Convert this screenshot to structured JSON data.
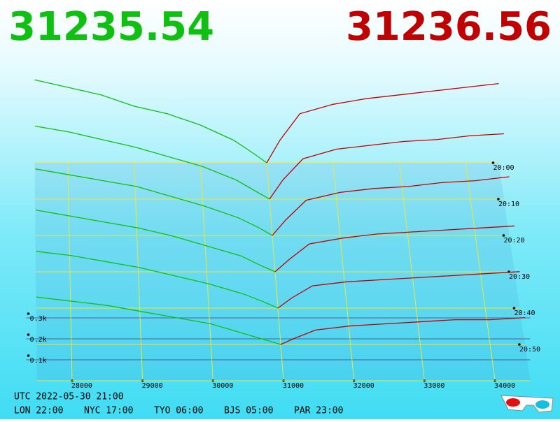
{
  "chart_data": {
    "type": "depth3d",
    "bid": "31235.54",
    "ask": "31236.56",
    "bid_color": "#10c010",
    "ask_color": "#c00000",
    "xlim": [
      27500,
      34500
    ],
    "xticks": [
      28000,
      29000,
      30000,
      31000,
      32000,
      33000,
      34000
    ],
    "tlim": [
      0,
      60
    ],
    "tticks": [
      {
        "value": 0,
        "label": "20:00"
      },
      {
        "value": 10,
        "label": "20:10"
      },
      {
        "value": 20,
        "label": "20:20"
      },
      {
        "value": 30,
        "label": "20:30"
      },
      {
        "value": 40,
        "label": "20:40"
      },
      {
        "value": 50,
        "label": "20:50"
      }
    ],
    "zticks": [
      {
        "value": 0.1,
        "label": "0.1k"
      },
      {
        "value": 0.2,
        "label": "0.2k"
      },
      {
        "value": 0.3,
        "label": "0.3k"
      }
    ],
    "snapshots": [
      {
        "t": 0,
        "bids": {
          "prices": [
            31000,
            30800,
            30500,
            30000,
            29500,
            29000,
            28500,
            28000,
            27500
          ],
          "depths": [
            0,
            0.05,
            0.12,
            0.2,
            0.26,
            0.3,
            0.36,
            0.4,
            0.44
          ]
        },
        "asks": {
          "prices": [
            31000,
            31200,
            31500,
            32000,
            32500,
            33000,
            33500,
            34000,
            34500
          ],
          "depths": [
            0,
            0.12,
            0.26,
            0.31,
            0.34,
            0.36,
            0.38,
            0.4,
            0.42
          ]
        }
      },
      {
        "t": 10,
        "bids": {
          "prices": [
            31000,
            30800,
            30500,
            30000,
            29500,
            29000,
            28500,
            28000,
            27500
          ],
          "depths": [
            0,
            0.04,
            0.1,
            0.17,
            0.22,
            0.27,
            0.31,
            0.35,
            0.38
          ]
        },
        "asks": {
          "prices": [
            31000,
            31200,
            31500,
            32000,
            32500,
            33000,
            33500,
            34000,
            34500
          ],
          "depths": [
            0,
            0.1,
            0.21,
            0.26,
            0.28,
            0.3,
            0.31,
            0.33,
            0.34
          ]
        }
      },
      {
        "t": 20,
        "bids": {
          "prices": [
            31000,
            30800,
            30500,
            30000,
            29500,
            29000,
            28500,
            28000,
            27500
          ],
          "depths": [
            0,
            0.04,
            0.09,
            0.15,
            0.2,
            0.25,
            0.28,
            0.31,
            0.34
          ]
        },
        "asks": {
          "prices": [
            31000,
            31200,
            31500,
            32000,
            32500,
            33000,
            33500,
            34000,
            34500
          ],
          "depths": [
            0,
            0.08,
            0.18,
            0.22,
            0.24,
            0.25,
            0.27,
            0.28,
            0.3
          ]
        }
      },
      {
        "t": 30,
        "bids": {
          "prices": [
            31000,
            30800,
            30500,
            30000,
            29500,
            29000,
            28500,
            28000,
            27500
          ],
          "depths": [
            0,
            0.03,
            0.08,
            0.13,
            0.18,
            0.22,
            0.25,
            0.28,
            0.31
          ]
        },
        "asks": {
          "prices": [
            31000,
            31200,
            31500,
            32000,
            32500,
            33000,
            33500,
            34000,
            34500
          ],
          "depths": [
            0,
            0.06,
            0.14,
            0.17,
            0.19,
            0.2,
            0.21,
            0.22,
            0.23
          ]
        }
      },
      {
        "t": 40,
        "bids": {
          "prices": [
            31000,
            30800,
            30500,
            30000,
            29500,
            29000,
            28500,
            28000,
            27500
          ],
          "depths": [
            0,
            0.03,
            0.07,
            0.12,
            0.16,
            0.2,
            0.23,
            0.26,
            0.28
          ]
        },
        "asks": {
          "prices": [
            31000,
            31200,
            31500,
            32000,
            32500,
            33000,
            33500,
            34000,
            34500
          ],
          "depths": [
            0,
            0.05,
            0.11,
            0.13,
            0.14,
            0.15,
            0.16,
            0.17,
            0.18
          ]
        }
      },
      {
        "t": 50,
        "bids": {
          "prices": [
            31000,
            30800,
            30500,
            30000,
            29500,
            29000,
            28500,
            28000,
            27500
          ],
          "depths": [
            0,
            0.02,
            0.05,
            0.1,
            0.13,
            0.16,
            0.19,
            0.21,
            0.23
          ]
        },
        "asks": {
          "prices": [
            31000,
            31200,
            31500,
            32000,
            32500,
            33000,
            33500,
            34000,
            34500
          ],
          "depths": [
            0,
            0.03,
            0.07,
            0.09,
            0.1,
            0.11,
            0.12,
            0.12,
            0.13
          ]
        }
      }
    ],
    "footer": {
      "utc": "UTC 2022-05-30 21:00",
      "clocks": [
        "LON 22:00",
        "NYC 17:00",
        "TYO 06:00",
        "BJS 05:00",
        "PAR 23:00"
      ]
    }
  }
}
